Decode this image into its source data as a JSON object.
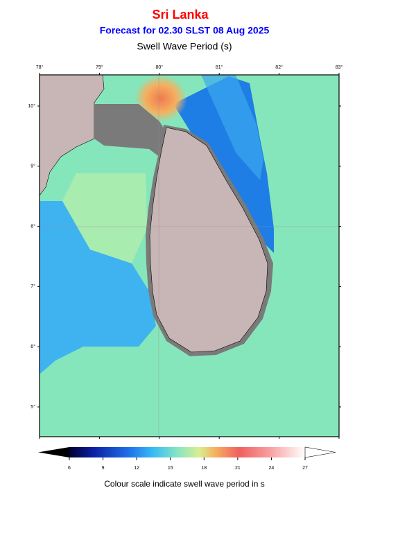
{
  "header": {
    "title": "Sri Lanka",
    "subtitle": "Forecast for  02.30 SLST 08 Aug 2025",
    "variable": "Swell Wave Period (s)"
  },
  "map": {
    "lon_ticks": [
      "78°",
      "79°",
      "80°",
      "81°",
      "82°",
      "83°"
    ],
    "lat_ticks": [
      "10°",
      "9°",
      "8°",
      "7°",
      "6°",
      "5°"
    ]
  },
  "colorbar": {
    "ticks": [
      "6",
      "9",
      "12",
      "15",
      "18",
      "21",
      "24",
      "27"
    ],
    "caption": "Colour scale indicate swell wave period in s"
  }
}
